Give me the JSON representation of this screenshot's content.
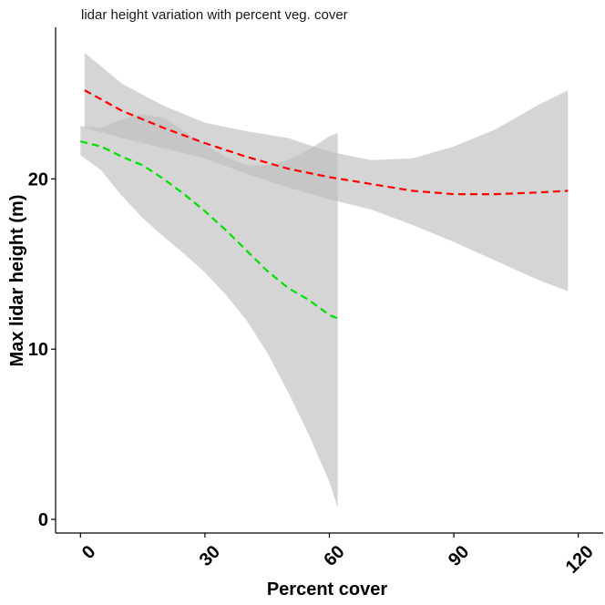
{
  "chart_data": {
    "type": "line",
    "title": "lidar height variation with percent veg. cover",
    "xlabel": "Percent cover",
    "ylabel": "Max lidar height (m)",
    "xlim": [
      -6,
      126
    ],
    "ylim": [
      -0.8,
      28.9
    ],
    "x_ticks": [
      0,
      30,
      60,
      90,
      120
    ],
    "y_ticks": [
      0,
      10,
      20
    ],
    "grid": false,
    "legend": "none",
    "series": [
      {
        "color": "#ff0000",
        "line_style": "dashed",
        "band_color": "#bfbfbf",
        "x": [
          1,
          10,
          20,
          30,
          40,
          50,
          60,
          70,
          80,
          90,
          100,
          110,
          117.5
        ],
        "y": [
          25.2,
          24.0,
          23.0,
          22.1,
          21.3,
          20.6,
          20.1,
          19.7,
          19.3,
          19.1,
          19.1,
          19.2,
          19.3
        ],
        "lower": [
          23.0,
          22.4,
          21.8,
          21.2,
          20.3,
          19.5,
          18.8,
          18.2,
          17.3,
          16.3,
          15.2,
          14.1,
          13.4
        ],
        "upper": [
          27.4,
          25.6,
          24.3,
          23.3,
          22.8,
          22.4,
          21.6,
          21.1,
          21.2,
          21.9,
          22.9,
          24.3,
          25.2
        ]
      },
      {
        "color": "#00e000",
        "line_style": "dashed",
        "band_color": "#bfbfbf",
        "x": [
          0,
          5,
          10,
          15,
          20,
          25,
          30,
          35,
          40,
          45,
          50,
          55,
          60,
          62
        ],
        "y": [
          22.2,
          21.9,
          21.3,
          20.8,
          20.0,
          19.1,
          18.1,
          17.0,
          15.8,
          14.6,
          13.6,
          12.9,
          12.0,
          11.8
        ],
        "lower": [
          21.4,
          20.5,
          19.0,
          17.7,
          16.6,
          15.6,
          14.5,
          13.2,
          11.7,
          9.8,
          7.5,
          5.0,
          2.2,
          0.7
        ],
        "upper": [
          23.1,
          23.0,
          23.5,
          23.8,
          23.6,
          22.8,
          22.0,
          21.3,
          20.8,
          20.8,
          21.1,
          21.7,
          22.5,
          22.7
        ]
      }
    ]
  }
}
